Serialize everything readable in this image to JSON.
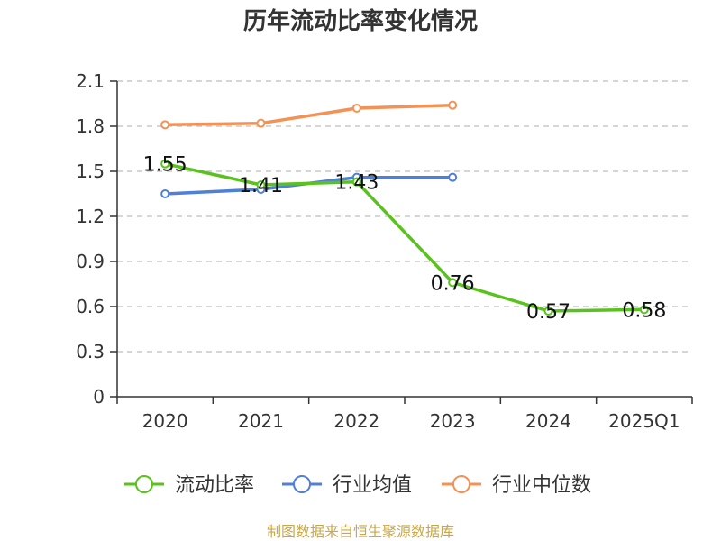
{
  "chart_data": {
    "type": "line",
    "title": "历年流动比率变化情况",
    "categories": [
      "2020",
      "2021",
      "2022",
      "2023",
      "2024",
      "2025Q1"
    ],
    "yticks": [
      "0",
      "0.3",
      "0.6",
      "0.9",
      "1.2",
      "1.5",
      "1.8",
      "2.1"
    ],
    "ylim": [
      0,
      2.1
    ],
    "grid": true,
    "legend_position": "bottom",
    "series": [
      {
        "name": "流动比率",
        "color": "#5ac21f",
        "values": [
          1.55,
          1.41,
          1.43,
          0.76,
          0.57,
          0.58
        ],
        "labels": [
          "1.55",
          "1.41",
          "1.43",
          "0.76",
          "0.57",
          "0.58"
        ]
      },
      {
        "name": "行业均值",
        "color": "#4f7fd6",
        "values": [
          1.35,
          1.38,
          1.46,
          1.46,
          null,
          null
        ]
      },
      {
        "name": "行业中位数",
        "color": "#f29256",
        "values": [
          1.81,
          1.82,
          1.92,
          1.94,
          null,
          null
        ]
      }
    ]
  },
  "footer": {
    "source": "制图数据来自恒生聚源数据库"
  }
}
